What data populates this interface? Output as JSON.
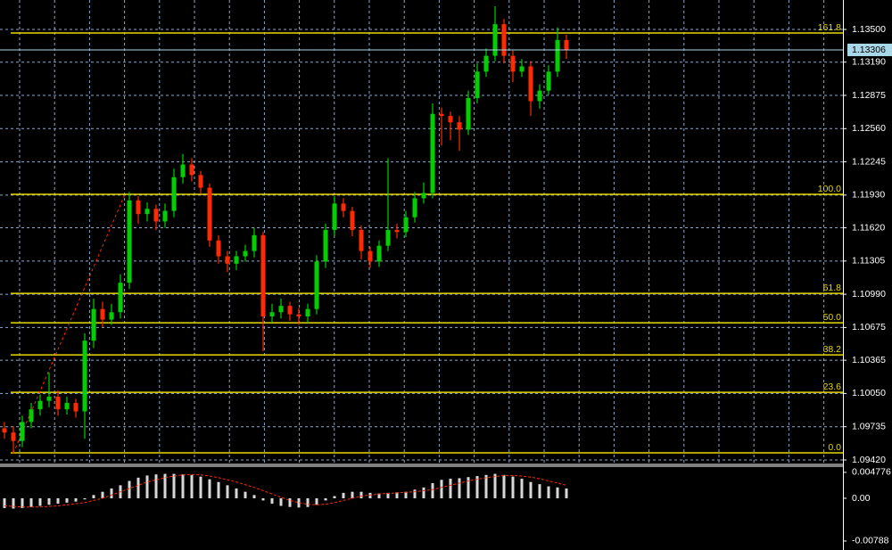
{
  "chart_data": [
    {
      "type": "candlestick",
      "up_color": "#00d000",
      "down_color": "#ff2a00",
      "grid": true,
      "grid_color": "#8fa8c8",
      "ylim": [
        1.09386,
        1.13779
      ],
      "yticks": [
        {
          "value": 1.135,
          "label": "1.13500"
        },
        {
          "value": 1.1319,
          "label": "1.13190"
        },
        {
          "value": 1.12875,
          "label": "1.12875"
        },
        {
          "value": 1.1256,
          "label": "1.12560"
        },
        {
          "value": 1.12245,
          "label": "1.12245"
        },
        {
          "value": 1.1193,
          "label": "1.11930"
        },
        {
          "value": 1.1162,
          "label": "1.11620"
        },
        {
          "value": 1.11305,
          "label": "1.11305"
        },
        {
          "value": 1.1099,
          "label": "1.10990"
        },
        {
          "value": 1.10675,
          "label": "1.10675"
        },
        {
          "value": 1.10365,
          "label": "1.10365"
        },
        {
          "value": 1.1005,
          "label": "1.10050"
        },
        {
          "value": 1.09735,
          "label": "1.09735"
        },
        {
          "value": 1.0942,
          "label": "1.09420"
        }
      ],
      "last_price": 1.13306,
      "last_price_color": "#a8d8e8",
      "level_color": "#e8d800",
      "levels": [
        {
          "name": "161.8",
          "price": 1.13466
        },
        {
          "name": "100.0",
          "price": 1.11937
        },
        {
          "name": "61.8",
          "price": 1.10999
        },
        {
          "name": "50.0",
          "price": 1.1072
        },
        {
          "name": "38.2",
          "price": 1.10416
        },
        {
          "name": "23.6",
          "price": 1.10061
        },
        {
          "name": "0.0",
          "price": 1.09487
        }
      ],
      "open": [
        1.0972,
        1.0968,
        1.096,
        1.0978,
        1.099,
        1.0998,
        1.1002,
        1.099,
        1.0996,
        1.0988,
        1.1055,
        1.1085,
        1.1075,
        1.1082,
        1.111,
        1.1188,
        1.1175,
        1.118,
        1.1168,
        1.1178,
        1.121,
        1.1222,
        1.1212,
        1.12,
        1.115,
        1.1135,
        1.1128,
        1.1135,
        1.114,
        1.1155,
        1.1078,
        1.1082,
        1.1088,
        1.108,
        1.1078,
        1.1085,
        1.113,
        1.116,
        1.1185,
        1.1178,
        1.116,
        1.114,
        1.113,
        1.1145,
        1.116,
        1.1158,
        1.1172,
        1.119,
        1.1195,
        1.127,
        1.1268,
        1.1262,
        1.1255,
        1.1285,
        1.131,
        1.1325,
        1.1355,
        1.1325,
        1.131,
        1.1315,
        1.1282,
        1.1292,
        1.131,
        1.134
      ],
      "high": [
        1.0978,
        1.0974,
        1.0984,
        1.0996,
        1.1004,
        1.1025,
        1.1008,
        1.1002,
        1.1,
        1.1062,
        1.1095,
        1.1092,
        1.109,
        1.1118,
        1.1196,
        1.1192,
        1.1186,
        1.1184,
        1.1185,
        1.1218,
        1.1232,
        1.1228,
        1.1216,
        1.1204,
        1.1155,
        1.114,
        1.114,
        1.1146,
        1.1162,
        1.1158,
        1.109,
        1.1095,
        1.1092,
        1.1086,
        1.109,
        1.1136,
        1.1166,
        1.1192,
        1.119,
        1.1182,
        1.1164,
        1.1144,
        1.115,
        1.1228,
        1.1166,
        1.1178,
        1.1196,
        1.1205,
        1.128,
        1.1276,
        1.1272,
        1.1268,
        1.1292,
        1.1318,
        1.1332,
        1.1372,
        1.136,
        1.133,
        1.1322,
        1.132,
        1.1298,
        1.1316,
        1.1352,
        1.1345
      ],
      "low": [
        1.0962,
        1.0948,
        1.0954,
        1.0972,
        1.0984,
        1.0992,
        1.0984,
        1.0985,
        1.0982,
        1.0962,
        1.1048,
        1.1068,
        1.107,
        1.1076,
        1.1104,
        1.1166,
        1.1168,
        1.116,
        1.1162,
        1.1172,
        1.1204,
        1.1206,
        1.1194,
        1.1144,
        1.1128,
        1.112,
        1.1122,
        1.113,
        1.1134,
        1.1045,
        1.1072,
        1.1076,
        1.1074,
        1.107,
        1.1072,
        1.108,
        1.1124,
        1.1154,
        1.1172,
        1.1154,
        1.1132,
        1.1124,
        1.1125,
        1.114,
        1.1152,
        1.1153,
        1.1167,
        1.1185,
        1.119,
        1.124,
        1.1245,
        1.1235,
        1.125,
        1.128,
        1.1305,
        1.132,
        1.1318,
        1.13,
        1.1305,
        1.1268,
        1.1275,
        1.1288,
        1.1305,
        1.1322
      ],
      "close": [
        1.0968,
        1.096,
        1.0978,
        1.099,
        1.0998,
        1.1002,
        1.099,
        1.0996,
        1.0988,
        1.1055,
        1.1085,
        1.1075,
        1.1082,
        1.111,
        1.1188,
        1.1175,
        1.118,
        1.1168,
        1.1178,
        1.121,
        1.1222,
        1.1212,
        1.12,
        1.115,
        1.1135,
        1.1128,
        1.1135,
        1.114,
        1.1155,
        1.1078,
        1.1082,
        1.1088,
        1.108,
        1.1078,
        1.1085,
        1.113,
        1.116,
        1.1185,
        1.1178,
        1.116,
        1.114,
        1.113,
        1.1145,
        1.116,
        1.1158,
        1.1172,
        1.119,
        1.1195,
        1.127,
        1.1268,
        1.1262,
        1.1255,
        1.1285,
        1.131,
        1.1325,
        1.1355,
        1.1325,
        1.131,
        1.1315,
        1.1282,
        1.1292,
        1.131,
        1.134,
        1.1331
      ]
    },
    {
      "type": "macd",
      "ylim": [
        -0.00953,
        0.00591
      ],
      "yticks": [
        0.004776,
        {
          "value": 0,
          "label": "0.00"
        },
        -0.00788
      ],
      "series": [
        {
          "color": "#d8d8d8",
          "values": [
            -0.0018,
            -0.0019,
            -0.0018,
            -0.0016,
            -0.0014,
            -0.0012,
            -0.001,
            -0.0008,
            -0.0006,
            -0.0002,
            0.0006,
            0.0012,
            0.0018,
            0.0024,
            0.0032,
            0.0038,
            0.0042,
            0.0044,
            0.0045,
            0.0045,
            0.0044,
            0.0043,
            0.004,
            0.0035,
            0.003,
            0.0024,
            0.0018,
            0.0012,
            0.0006,
            -0.0004,
            -0.001,
            -0.0014,
            -0.0016,
            -0.0017,
            -0.0016,
            -0.0012,
            -0.0004,
            0.0004,
            0.001,
            0.0012,
            0.0012,
            0.001,
            0.0009,
            0.001,
            0.0011,
            0.0012,
            0.0016,
            0.002,
            0.0028,
            0.0034,
            0.0036,
            0.0037,
            0.0039,
            0.0041,
            0.0043,
            0.0045,
            0.0043,
            0.004,
            0.0036,
            0.003,
            0.0026,
            0.0022,
            0.002,
            0.0018
          ]
        },
        {
          "color": "#ff2a00",
          "values": [
            -0.0014,
            -0.0015,
            -0.0016,
            -0.0016,
            -0.0016,
            -0.0015,
            -0.0014,
            -0.0012,
            -0.001,
            -0.0008,
            -0.0004,
            0.0,
            0.0006,
            0.0012,
            0.0018,
            0.0024,
            0.003,
            0.0034,
            0.0038,
            0.0041,
            0.0043,
            0.0044,
            0.0043,
            0.0041,
            0.0038,
            0.0034,
            0.003,
            0.0025,
            0.002,
            0.0014,
            0.0008,
            0.0002,
            -0.0004,
            -0.0008,
            -0.0011,
            -0.0012,
            -0.0011,
            -0.0008,
            -0.0004,
            0.0,
            0.0004,
            0.0006,
            0.0008,
            0.0009,
            0.001,
            0.0011,
            0.0012,
            0.0014,
            0.0016,
            0.002,
            0.0024,
            0.0028,
            0.0032,
            0.0035,
            0.0038,
            0.004,
            0.0042,
            0.0042,
            0.0041,
            0.0039,
            0.0036,
            0.0032,
            0.0028,
            0.0024
          ]
        }
      ]
    }
  ]
}
